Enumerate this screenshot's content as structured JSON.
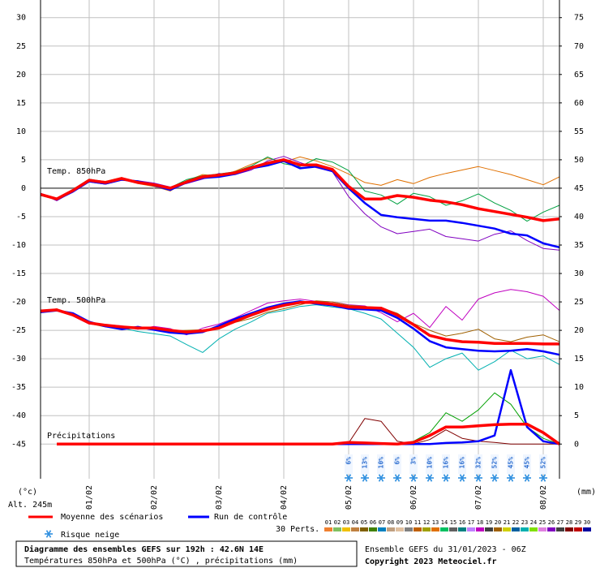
{
  "chart_data": {
    "type": "line",
    "x": [
      0,
      6,
      12,
      18,
      24,
      30,
      36,
      42,
      48,
      54,
      60,
      66,
      72,
      78,
      84,
      90,
      96,
      102,
      108,
      114,
      120,
      126,
      132,
      138,
      144,
      150,
      156,
      162,
      168,
      174,
      180,
      186,
      192
    ],
    "xlim": [
      0,
      192
    ],
    "xticks": [
      {
        "value": 18,
        "label": "01/02"
      },
      {
        "value": 42,
        "label": "02/02"
      },
      {
        "value": 66,
        "label": "03/02"
      },
      {
        "value": 90,
        "label": "04/02"
      },
      {
        "value": 114,
        "label": "05/02"
      },
      {
        "value": 138,
        "label": "06/02"
      },
      {
        "value": 162,
        "label": "07/02"
      },
      {
        "value": 186,
        "label": "08/02"
      }
    ],
    "ylim": [
      -51.1,
      33.1
    ],
    "yticks": [
      30,
      25,
      20,
      15,
      10,
      5,
      0,
      -5,
      -10,
      -15,
      -20,
      -25,
      -30,
      -35,
      -40,
      -45
    ],
    "y2lim": [
      -6.1,
      78.1
    ],
    "y2ticks": [
      75,
      70,
      65,
      60,
      55,
      50,
      45,
      40,
      35,
      30,
      25,
      20,
      15,
      10,
      5,
      0
    ],
    "grid": true,
    "axis_labels": {
      "y": "(°c)",
      "y2": "(mm)",
      "alt": "Alt. 245m"
    },
    "groups": [
      {
        "label": "Temp. 850hPa",
        "mean": [
          -1.1,
          -1.9,
          -0.4,
          1.4,
          1.0,
          1.7,
          1.0,
          0.6,
          0,
          1.1,
          2.0,
          2.3,
          2.7,
          3.6,
          4.4,
          5.0,
          4.1,
          4.1,
          3.3,
          0.3,
          -1.9,
          -1.9,
          -1.3,
          -1.6,
          -2.1,
          -2.4,
          -2.9,
          -3.6,
          -4.1,
          -4.6,
          -5.1,
          -5.7,
          -5.4
        ],
        "control": [
          -1.0,
          -2.0,
          -0.6,
          1.2,
          0.8,
          1.5,
          1.2,
          0.5,
          -0.3,
          1.0,
          1.8,
          2.0,
          2.5,
          3.5,
          4.0,
          4.8,
          3.5,
          3.8,
          3.0,
          0,
          -2.6,
          -4.7,
          -5.1,
          -5.4,
          -5.7,
          -5.7,
          -6.1,
          -6.6,
          -7.1,
          -8.0,
          -8.3,
          -9.7,
          -10.4
        ],
        "members": [
          {
            "color": "#e07000",
            "values": [
              -1.2,
              -1.8,
              -0.3,
              1.5,
              1.2,
              1.9,
              0.8,
              0.3,
              -0.5,
              1.3,
              2.4,
              2.1,
              3.0,
              4.2,
              5.3,
              4.6,
              5.5,
              4.8,
              3.8,
              2.5,
              1.0,
              0.5,
              1.5,
              0.8,
              1.9,
              2.6,
              3.2,
              3.8,
              3.1,
              2.4,
              1.5,
              0.6,
              2.0
            ]
          },
          {
            "color": "#8000c0",
            "values": [
              -0.9,
              -2.2,
              -0.6,
              1.1,
              0.7,
              1.4,
              1.3,
              0.9,
              0.2,
              0.8,
              1.6,
              2.6,
              2.4,
              3.2,
              4.8,
              5.6,
              4.5,
              3.6,
              2.9,
              -1.5,
              -4.5,
              -6.8,
              -8.0,
              -7.6,
              -7.2,
              -8.5,
              -8.9,
              -9.3,
              -8.1,
              -7.5,
              -9.2,
              -10.6,
              -10.9
            ]
          },
          {
            "color": "#00a040",
            "values": [
              -1.3,
              -2.0,
              -0.2,
              1.6,
              1.1,
              1.8,
              0.9,
              0.4,
              0.1,
              1.5,
              2.2,
              2.5,
              2.9,
              3.9,
              5.5,
              4.3,
              3.8,
              5.2,
              4.6,
              3.1,
              -0.5,
              -1.2,
              -2.8,
              -0.9,
              -1.5,
              -3.0,
              -2.2,
              -1.0,
              -2.6,
              -3.9,
              -5.8,
              -4.2,
              -3.0
            ]
          }
        ]
      },
      {
        "label": "Temp. 500hPa",
        "mean": [
          -21.6,
          -21.4,
          -22.3,
          -23.7,
          -24.1,
          -24.4,
          -24.6,
          -24.6,
          -25.0,
          -25.3,
          -25.1,
          -24.6,
          -23.4,
          -22.3,
          -21.3,
          -20.6,
          -20.1,
          -20.1,
          -20.4,
          -20.9,
          -21.0,
          -21.1,
          -22.3,
          -24.0,
          -25.9,
          -26.6,
          -27.0,
          -27.1,
          -27.3,
          -27.3,
          -27.3,
          -27.4,
          -27.4
        ],
        "control": [
          -21.8,
          -21.5,
          -22.0,
          -23.5,
          -24.3,
          -24.8,
          -24.4,
          -24.9,
          -25.4,
          -25.6,
          -25.3,
          -24.2,
          -23.0,
          -22.0,
          -21.0,
          -20.3,
          -19.9,
          -20.3,
          -20.6,
          -21.2,
          -21.3,
          -21.5,
          -22.8,
          -24.7,
          -26.9,
          -28.0,
          -28.3,
          -28.6,
          -28.7,
          -28.6,
          -28.3,
          -28.7,
          -29.3
        ],
        "members": [
          {
            "color": "#c000c0",
            "values": [
              -21.5,
              -21.3,
              -22.5,
              -23.9,
              -24.0,
              -24.2,
              -24.8,
              -24.3,
              -24.7,
              -25.8,
              -24.6,
              -23.9,
              -22.8,
              -21.5,
              -20.2,
              -19.8,
              -19.5,
              -19.9,
              -20.0,
              -20.5,
              -20.7,
              -21.9,
              -23.5,
              -22.0,
              -24.5,
              -20.8,
              -23.2,
              -19.5,
              -18.4,
              -17.8,
              -18.2,
              -19.0,
              -21.5
            ]
          },
          {
            "color": "#00b0b0",
            "values": [
              -21.7,
              -21.6,
              -22.1,
              -23.6,
              -24.2,
              -24.6,
              -25.2,
              -25.6,
              -26.0,
              -27.5,
              -28.9,
              -26.5,
              -24.8,
              -23.5,
              -22.0,
              -21.5,
              -20.8,
              -20.5,
              -20.9,
              -21.2,
              -22.0,
              -23.0,
              -25.5,
              -28.0,
              -31.5,
              -30.0,
              -29.0,
              -32.0,
              -30.5,
              -28.5,
              -30.0,
              -29.5,
              -31.0
            ]
          },
          {
            "color": "#a06000",
            "values": [
              -21.9,
              -21.2,
              -22.4,
              -23.8,
              -24.4,
              -24.3,
              -24.5,
              -24.8,
              -25.1,
              -25.0,
              -24.9,
              -24.7,
              -23.6,
              -22.9,
              -21.8,
              -21.2,
              -20.5,
              -19.8,
              -20.0,
              -20.6,
              -20.8,
              -21.0,
              -22.0,
              -23.8,
              -25.0,
              -26.0,
              -25.5,
              -24.8,
              -26.5,
              -27.0,
              -26.2,
              -25.8,
              -27.0
            ]
          }
        ]
      },
      {
        "label": "Précipitations",
        "axis": "y2",
        "mean": [
          null,
          0,
          0,
          0,
          0,
          0,
          0,
          0,
          0,
          0,
          0,
          0,
          0,
          0,
          0,
          0,
          0,
          0,
          0,
          0.3,
          0.2,
          0.1,
          0,
          0.3,
          1.5,
          3.0,
          3.0,
          3.2,
          3.4,
          3.5,
          3.5,
          2.0,
          0
        ],
        "control": [
          null,
          0,
          0,
          0,
          0,
          0,
          0,
          0,
          0,
          0,
          0,
          0,
          0,
          0,
          0,
          0,
          0,
          0,
          0,
          0,
          0,
          0,
          0,
          0,
          0,
          0.2,
          0.3,
          0.5,
          1.5,
          13,
          3,
          0.5,
          0
        ],
        "members": [
          {
            "color": "#800000",
            "values": [
              null,
              0,
              0,
              0,
              0,
              0,
              0,
              0,
              0,
              0,
              0,
              0,
              0,
              0,
              0,
              0,
              0,
              0,
              0,
              0.2,
              4.5,
              4.0,
              0.5,
              0,
              0.8,
              2.5,
              1.0,
              0.5,
              0.3,
              0,
              0,
              0,
              0
            ]
          },
          {
            "color": "#00a000",
            "values": [
              null,
              0,
              0,
              0,
              0,
              0,
              0,
              0,
              0,
              0,
              0,
              0,
              0,
              0,
              0,
              0,
              0,
              0,
              0,
              0,
              0,
              0,
              0,
              0.5,
              2.0,
              5.5,
              4.0,
              6.0,
              9.0,
              7.0,
              3.0,
              1.0,
              0
            ]
          }
        ]
      }
    ],
    "snow_risk": {
      "x": [
        114,
        120,
        126,
        132,
        138,
        144,
        150,
        156,
        162,
        168,
        174,
        180,
        186
      ],
      "values": [
        6,
        13,
        10,
        6,
        3,
        10,
        16,
        16,
        32,
        52,
        45,
        45,
        52
      ],
      "value_labels": [
        "6%",
        "13%",
        "10%",
        "6%",
        "3%",
        "10%",
        "16%",
        "16%",
        "32%",
        "52%",
        "45%",
        "45%",
        "52%"
      ]
    },
    "legend": {
      "mean": {
        "name": "Moyenne des scénarios",
        "color": "#ff0000"
      },
      "control": {
        "name": "Run de contrôle",
        "color": "#0000ff"
      },
      "snow": "Risque neige",
      "perts_title": "30 Perts.",
      "perts": [
        {
          "label": "01",
          "color": "#f08030"
        },
        {
          "label": "02",
          "color": "#80c060"
        },
        {
          "label": "03",
          "color": "#f0c000"
        },
        {
          "label": "04",
          "color": "#c08040"
        },
        {
          "label": "05",
          "color": "#806000"
        },
        {
          "label": "06",
          "color": "#408000"
        },
        {
          "label": "07",
          "color": "#0080c0"
        },
        {
          "label": "08",
          "color": "#c0a080"
        },
        {
          "label": "09",
          "color": "#e0c0a0"
        },
        {
          "label": "10",
          "color": "#808080"
        },
        {
          "label": "11",
          "color": "#c06000"
        },
        {
          "label": "12",
          "color": "#a0a000"
        },
        {
          "label": "13",
          "color": "#e07000"
        },
        {
          "label": "14",
          "color": "#00c060"
        },
        {
          "label": "15",
          "color": "#606060"
        },
        {
          "label": "16",
          "color": "#008080"
        },
        {
          "label": "17",
          "color": "#c080ff"
        },
        {
          "label": "18",
          "color": "#c000c0"
        },
        {
          "label": "19",
          "color": "#404040"
        },
        {
          "label": "20",
          "color": "#a06000"
        },
        {
          "label": "21",
          "color": "#d0d000"
        },
        {
          "label": "22",
          "color": "#0060a0"
        },
        {
          "label": "23",
          "color": "#00b0b0"
        },
        {
          "label": "24",
          "color": "#80e000"
        },
        {
          "label": "25",
          "color": "#e080e0"
        },
        {
          "label": "26",
          "color": "#8000c0"
        },
        {
          "label": "27",
          "color": "#404040"
        },
        {
          "label": "28",
          "color": "#800000"
        },
        {
          "label": "29",
          "color": "#c00000"
        },
        {
          "label": "30",
          "color": "#0000a0"
        }
      ]
    },
    "footer": {
      "title": "Diagramme des ensembles GEFS sur 192h : 42.6N 14E",
      "subtitle": "Températures 850hPa et 500hPa (°C) , précipitations (mm)",
      "run": "Ensemble GEFS du 31/01/2023 - 06Z",
      "copyright": "Copyright 2023 Meteociel.fr"
    }
  }
}
